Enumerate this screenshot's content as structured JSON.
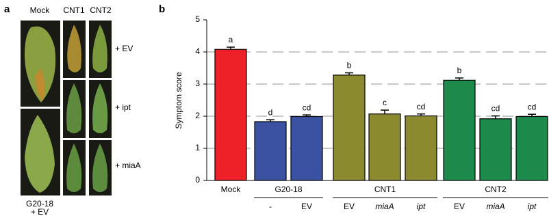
{
  "panel_a": {
    "label": "a",
    "columns": [
      "Mock",
      "CNT1",
      "CNT2"
    ],
    "rows": [
      "+ EV",
      "+ ipt",
      "+ miaA"
    ],
    "footer": [
      "G20-18",
      "+ EV"
    ]
  },
  "chart_data": {
    "type": "bar",
    "panel_label": "b",
    "y_label": "Symptom score",
    "ylim": [
      0,
      5
    ],
    "yticks": [
      0,
      1,
      2,
      3,
      4,
      5
    ],
    "grid": "dashed",
    "groups": [
      {
        "label": "Mock",
        "color": "#ee2028",
        "bars": [
          {
            "value": 4.08,
            "error": 0.07,
            "letter": "a"
          }
        ]
      },
      {
        "label": "G20-18",
        "color": "#3b52a3",
        "bars": [
          {
            "label": "-",
            "value": 1.83,
            "error": 0.06,
            "letter": "d"
          },
          {
            "label": "EV",
            "value": 1.99,
            "error": 0.05,
            "letter": "cd"
          }
        ]
      },
      {
        "label": "CNT1",
        "color": "#8c8a2f",
        "bars": [
          {
            "label": "EV",
            "value": 3.28,
            "error": 0.07,
            "letter": "b"
          },
          {
            "label": "miaA",
            "italic": true,
            "value": 2.07,
            "error": 0.12,
            "letter": "c"
          },
          {
            "label": "ipt",
            "italic": true,
            "value": 2.01,
            "error": 0.06,
            "letter": "cd"
          }
        ]
      },
      {
        "label": "CNT2",
        "color": "#1b8a4b",
        "bars": [
          {
            "label": "EV",
            "value": 3.12,
            "error": 0.07,
            "letter": "b"
          },
          {
            "label": "miaA",
            "italic": true,
            "value": 1.92,
            "error": 0.09,
            "letter": "cd"
          },
          {
            "label": "ipt",
            "italic": true,
            "value": 1.99,
            "error": 0.07,
            "letter": "cd"
          }
        ]
      }
    ]
  }
}
